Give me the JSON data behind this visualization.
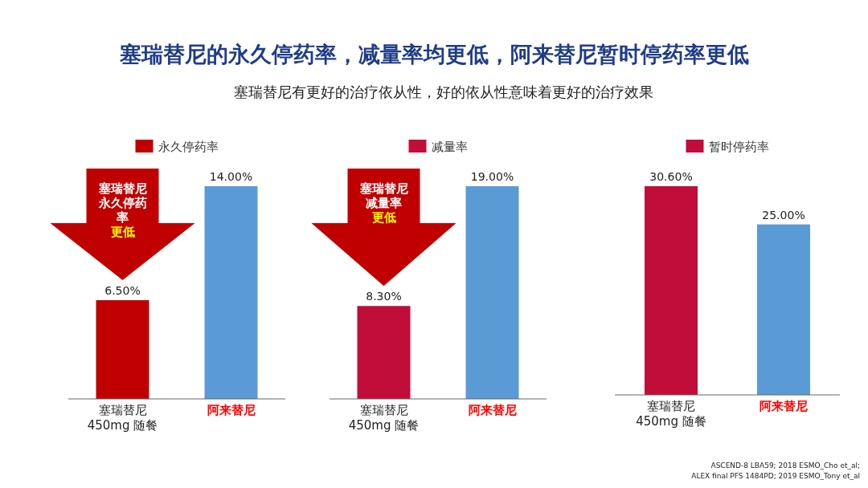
{
  "chart_data": [
    {
      "type": "bar",
      "title": "塞瑞替尼的永久停药率，减量率均更低，阿来替尼暂时停药率更低",
      "subtitle": "塞瑞替尼有更好的治疗依从性，好的依从性意味着更好的治疗效果",
      "categories": [
        "塞瑞替尼 450mg 随餐",
        "阿来替尼"
      ],
      "legend": "top",
      "series": [
        {
          "name": "永久停药率",
          "colors": [
            "#c00000",
            "#5b9bd5"
          ],
          "values": [
            6.5,
            14
          ],
          "value_labels": [
            "6.50%",
            "14.00%"
          ]
        }
      ],
      "annotations": [
        "塞瑞替尼永久停药率**更低**"
      ]
    },
    {
      "type": "bar",
      "categories": [
        "塞瑞替尼 450mg 随餐",
        "阿来替尼"
      ],
      "legend": "top",
      "series": [
        {
          "name": "减量率",
          "colors": [
            "#c00d3a",
            "#5b9bd5"
          ],
          "values": [
            8.3,
            19
          ],
          "value_labels": [
            "8.30%",
            "19.00%"
          ]
        }
      ],
      "annotations": [
        "塞瑞替尼减量率**更低**"
      ]
    },
    {
      "type": "bar",
      "categories": [
        "塞瑞替尼 450mg 随餐",
        "阿来替尼"
      ],
      "legend": "top",
      "series": [
        {
          "name": "暂时停药率",
          "colors": [
            "#c00d3a",
            "#5b9bd5"
          ],
          "values": [
            30.6,
            25
          ],
          "value_labels": [
            "30.60%",
            "25.00%"
          ]
        }
      ],
      "annotations": [
        "ASCEND-8 LBA59; 2018 ESMO_Cho et_al;",
        "ALEX final PFS 1484PD; 2019 ESMO_Tony et_al"
      ]
    }
  ]
}
